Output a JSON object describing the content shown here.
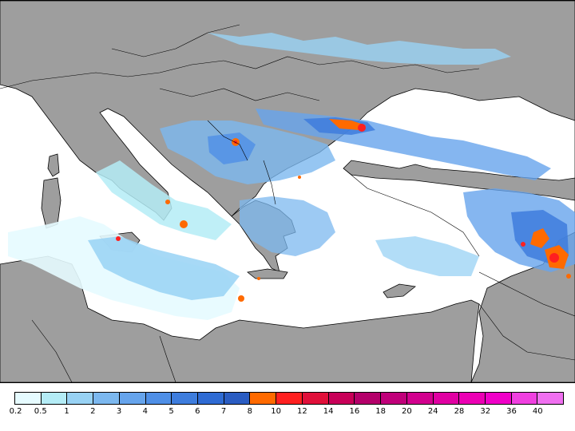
{
  "map": {
    "land_color": "#9e9e9e",
    "sea_color": "#ffffff",
    "border_color": "#000000"
  },
  "legend": {
    "labels": [
      "0.2",
      "0.5",
      "1",
      "2",
      "3",
      "4",
      "5",
      "6",
      "7",
      "8",
      "10",
      "12",
      "14",
      "16",
      "18",
      "20",
      "24",
      "28",
      "32",
      "36",
      "40"
    ],
    "colors": [
      "#e6fbff",
      "#b4ecf6",
      "#98d2f4",
      "#7cb8ef",
      "#66a4ec",
      "#4f8fe6",
      "#3e7ddd",
      "#2f6bd3",
      "#2a5cc2",
      "#ff6a00",
      "#ff2020",
      "#e0103a",
      "#c80058",
      "#b4006a",
      "#c0007a",
      "#d2008e",
      "#e000a2",
      "#ec00b4",
      "#f000c8",
      "#f040e0",
      "#f070f0"
    ]
  }
}
